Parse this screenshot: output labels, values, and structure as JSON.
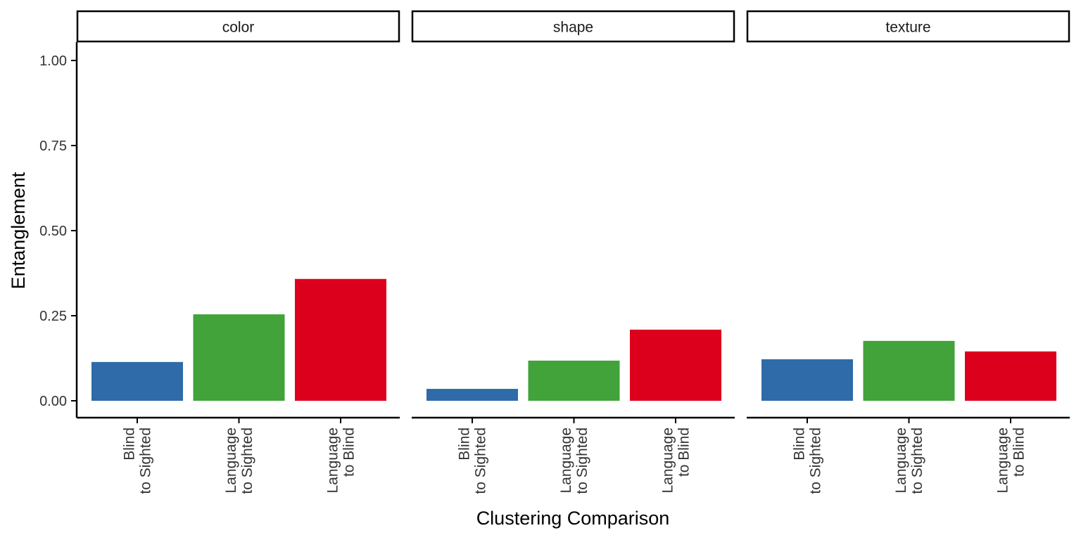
{
  "chart_data": {
    "type": "bar",
    "facet_by": "attribute",
    "panels": [
      {
        "title": "color",
        "categories": [
          "Blind\nto Sighted",
          "Language\nto Sighted",
          "Language\nto Blind"
        ],
        "values": [
          0.114,
          0.254,
          0.358
        ]
      },
      {
        "title": "shape",
        "categories": [
          "Blind\nto Sighted",
          "Language\nto Sighted",
          "Language\nto Blind"
        ],
        "values": [
          0.035,
          0.118,
          0.209
        ]
      },
      {
        "title": "texture",
        "categories": [
          "Blind\nto Sighted",
          "Language\nto Sighted",
          "Language\nto Blind"
        ],
        "values": [
          0.122,
          0.176,
          0.145
        ]
      }
    ],
    "bar_colors": [
      "#2E6BA8",
      "#41A33A",
      "#DC001C"
    ],
    "xlabel": "Clustering Comparison",
    "ylabel": "Entanglement",
    "yticks": [
      "0.00",
      "0.25",
      "0.50",
      "0.75",
      "1.00"
    ],
    "ylim": [
      -0.05,
      1.05
    ],
    "grid": false,
    "legend": "none"
  }
}
